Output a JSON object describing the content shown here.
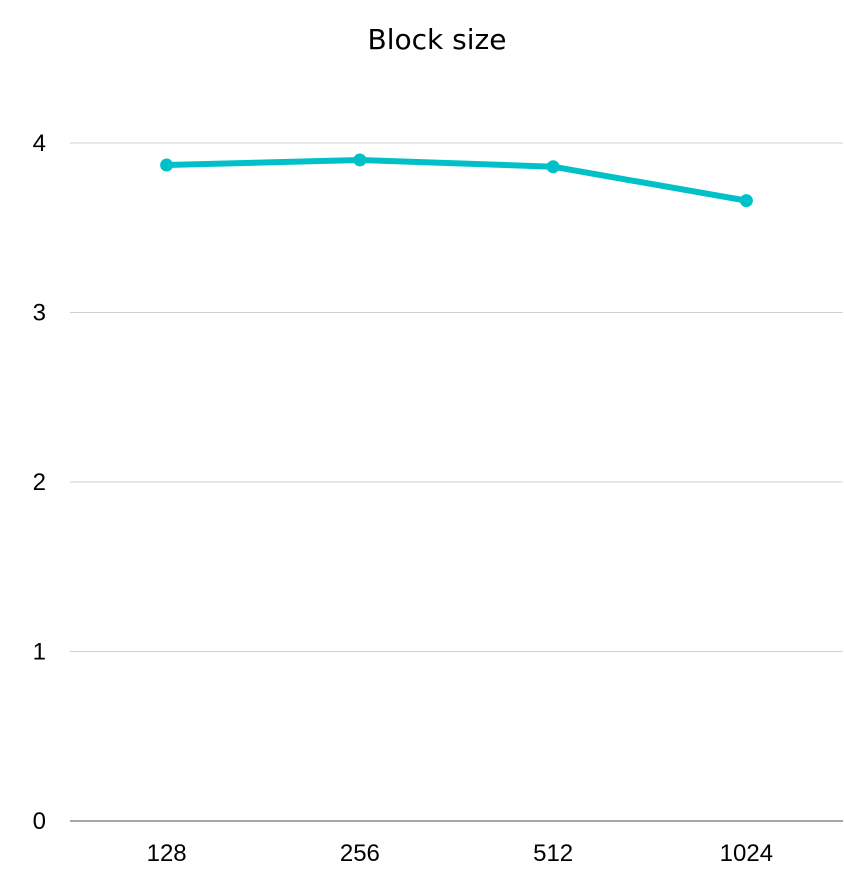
{
  "chart_data": {
    "type": "line",
    "title": "Block size",
    "xlabel": "",
    "ylabel": "",
    "categories": [
      "128",
      "256",
      "512",
      "1024"
    ],
    "series": [
      {
        "values": [
          3.87,
          3.9,
          3.86,
          3.66
        ],
        "color": "#00c1c8"
      }
    ],
    "y_ticks": [
      "0",
      "1",
      "2",
      "3",
      "4"
    ],
    "ylim": [
      0,
      4.45
    ],
    "grid": true,
    "legend": "none"
  }
}
